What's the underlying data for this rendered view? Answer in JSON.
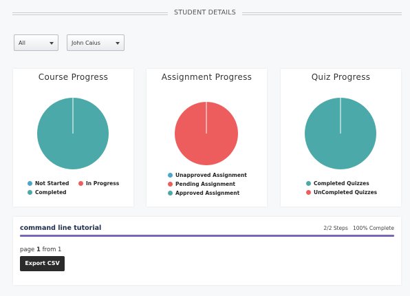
{
  "header": {
    "title": "STUDENT DETAILS"
  },
  "filters": {
    "group_select": {
      "value": "All"
    },
    "student_select": {
      "value": "John Caius"
    }
  },
  "colors": {
    "teal": "#4ba9a9",
    "red": "#ee5d5d",
    "blue": "#4da6c8",
    "purple": "#7a66b8"
  },
  "cards": {
    "course": {
      "title": "Course Progress",
      "legend": [
        "Not Started",
        "In Progress",
        "Completed"
      ]
    },
    "assignment": {
      "title": "Assignment Progress",
      "legend": [
        "Unapproved Assignment",
        "Pending Assignment",
        "Approved Assignment"
      ]
    },
    "quiz": {
      "title": "Quiz Progress",
      "legend": [
        "Completed Quizzes",
        "UnCompleted Quizzes"
      ]
    }
  },
  "chart_data": [
    {
      "type": "pie",
      "title": "Course Progress",
      "categories": [
        "Not Started",
        "In Progress",
        "Completed"
      ],
      "values": [
        0,
        0,
        100
      ],
      "colors": [
        "#4da6c8",
        "#ee5d5d",
        "#4ba9a9"
      ]
    },
    {
      "type": "pie",
      "title": "Assignment Progress",
      "categories": [
        "Unapproved Assignment",
        "Pending Assignment",
        "Approved Assignment"
      ],
      "values": [
        0,
        100,
        0
      ],
      "colors": [
        "#4da6c8",
        "#ee5d5d",
        "#4ba9a9"
      ]
    },
    {
      "type": "pie",
      "title": "Quiz Progress",
      "categories": [
        "Completed Quizzes",
        "UnCompleted Quizzes"
      ],
      "values": [
        100,
        0
      ],
      "colors": [
        "#4ba9a9",
        "#ee5d5d"
      ]
    }
  ],
  "course_row": {
    "name": "command line tutorial",
    "steps": "2/2 Steps",
    "complete": "100% Complete",
    "progress": 1.0
  },
  "pagination": {
    "prefix": "page",
    "current": "1",
    "middle": "from",
    "total": "1"
  },
  "export_button": {
    "label": "Export CSV"
  }
}
